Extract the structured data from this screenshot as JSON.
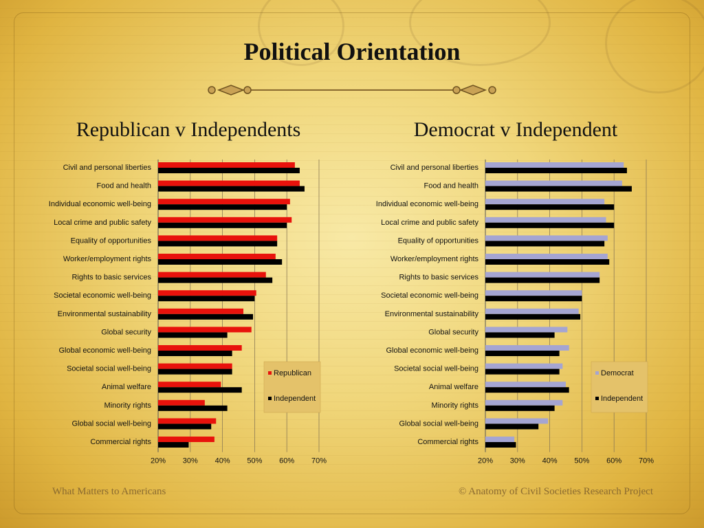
{
  "slide": {
    "title": "Political Orientation",
    "footer_left": "What Matters to Americans",
    "footer_right": "© Anatomy of Civil Societies Research Project"
  },
  "colors": {
    "republican": "#e8120c",
    "democrat": "#a5a5d2",
    "independent": "#000000"
  },
  "chart_data": [
    {
      "type": "bar",
      "orientation": "horizontal",
      "title": "Republican v Independents",
      "categories": [
        "Civil and personal liberties",
        "Food and health",
        "Individual economic well-being",
        "Local crime and public safety",
        "Equality of opportunities",
        "Worker/employment rights",
        "Rights to basic services",
        "Societal economic well-being",
        "Environmental sustainability",
        "Global security",
        "Global economic well-being",
        "Societal social well-being",
        "Animal welfare",
        "Minority rights",
        "Global social well-being",
        "Commercial rights"
      ],
      "series": [
        {
          "name": "Republican",
          "color": "#e8120c",
          "values": [
            62.5,
            64,
            61,
            61.5,
            57,
            56.5,
            53.5,
            50.5,
            46.5,
            49,
            46,
            43,
            39.5,
            34.5,
            38,
            37.5
          ]
        },
        {
          "name": "Independent",
          "color": "#000000",
          "values": [
            64,
            65.5,
            60,
            60,
            57,
            58.5,
            55.5,
            50,
            49.5,
            41.5,
            43,
            43,
            46,
            41.5,
            36.5,
            29.5
          ]
        }
      ],
      "xlim": [
        20,
        70
      ],
      "tick_labels": [
        "20%",
        "30%",
        "40%",
        "50%",
        "60%",
        "70%"
      ],
      "grid": true,
      "legend_position": "bottom-right"
    },
    {
      "type": "bar",
      "orientation": "horizontal",
      "title": "Democrat v Independent",
      "categories": [
        "Civil and personal liberties",
        "Food and health",
        "Individual economic well-being",
        "Local crime and public safety",
        "Equality of opportunities",
        "Worker/employment rights",
        "Rights to basic services",
        "Societal economic well-being",
        "Environmental sustainability",
        "Global security",
        "Global economic well-being",
        "Societal social well-being",
        "Animal welfare",
        "Minority rights",
        "Global social well-being",
        "Commercial rights"
      ],
      "series": [
        {
          "name": "Democrat",
          "color": "#a5a5d2",
          "values": [
            63,
            62.5,
            57,
            57.5,
            58,
            58,
            55.5,
            50,
            49,
            45.5,
            46,
            44,
            45,
            44,
            39.5,
            29
          ]
        },
        {
          "name": "Independent",
          "color": "#000000",
          "values": [
            64,
            65.5,
            60,
            60,
            57,
            58.5,
            55.5,
            50,
            49.5,
            41.5,
            43,
            43,
            46,
            41.5,
            36.5,
            29.5
          ]
        }
      ],
      "xlim": [
        20,
        70
      ],
      "tick_labels": [
        "20%",
        "30%",
        "40%",
        "50%",
        "60%",
        "70%"
      ],
      "grid": true,
      "legend_position": "bottom-right"
    }
  ]
}
